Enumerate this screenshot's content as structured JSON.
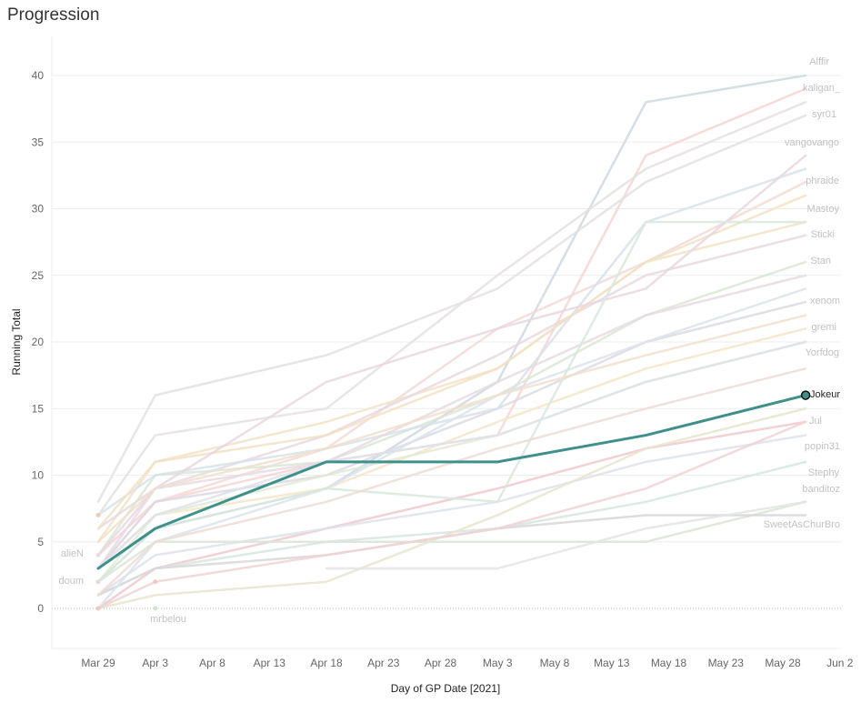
{
  "page": {
    "title": "Progression"
  },
  "colors": {
    "highlight": "#3f8f8a",
    "grid": "#eeeeee",
    "muted_label": "#c4c4c4"
  },
  "chart_data": {
    "type": "line",
    "title": "Progression",
    "xlabel": "Day of GP Date [2021]",
    "ylabel": "Running Total",
    "x_ticks": [
      "Mar 29",
      "Apr 3",
      "Apr 8",
      "Apr 13",
      "Apr 18",
      "Apr 23",
      "Apr 28",
      "May 3",
      "May 8",
      "May 13",
      "May 18",
      "May 23",
      "May 28",
      "Jun 2"
    ],
    "y_ticks": [
      "0",
      "5",
      "10",
      "15",
      "20",
      "25",
      "30",
      "35",
      "40"
    ],
    "ylim": [
      0,
      40
    ],
    "grid": true,
    "highlighted_series": "Jokeur",
    "series": [
      {
        "name": "Alffir",
        "color": "#cfd8e0",
        "label_color": "#c2c2c2",
        "points": [
          [
            "Mar 29",
            2
          ],
          [
            "Apr 3",
            6
          ],
          [
            "Apr 18",
            9
          ],
          [
            "May 3",
            17
          ],
          [
            "May 16",
            38
          ],
          [
            "May 30",
            40
          ]
        ]
      },
      {
        "name": "kaligan_",
        "color": "#f4d5d3",
        "label_color": "#c2c2c2",
        "points": [
          [
            "Mar 29",
            4
          ],
          [
            "Apr 3",
            8
          ],
          [
            "Apr 18",
            11
          ],
          [
            "May 3",
            13
          ],
          [
            "May 16",
            34
          ],
          [
            "May 30",
            39
          ]
        ]
      },
      {
        "name": "syr01",
        "color": "#e3e1e1",
        "label_color": "#c2c2c2",
        "points": [
          [
            "Mar 29",
            8
          ],
          [
            "Apr 3",
            16
          ],
          [
            "Apr 18",
            19
          ],
          [
            "May 3",
            24
          ],
          [
            "May 16",
            32
          ],
          [
            "May 30",
            37
          ]
        ]
      },
      {
        "name": "vangovango",
        "color": "#e6e0e0",
        "label_color": "#c2c2c2",
        "points": [
          [
            "Mar 29",
            7
          ],
          [
            "Apr 3",
            13
          ],
          [
            "Apr 18",
            15
          ],
          [
            "May 3",
            25
          ],
          [
            "May 16",
            33
          ],
          [
            "May 30",
            38
          ]
        ]
      },
      {
        "name": "phraide",
        "color": "#f1dad7",
        "label_color": "#c2c2c2",
        "points": [
          [
            "Mar 29",
            3
          ],
          [
            "Apr 3",
            8
          ],
          [
            "Apr 18",
            12
          ],
          [
            "May 3",
            21
          ],
          [
            "May 16",
            26
          ],
          [
            "May 30",
            32
          ]
        ]
      },
      {
        "name": "Mastoy",
        "color": "#f1e3c8",
        "label_color": "#c2c2c2",
        "points": [
          [
            "Mar 29",
            5
          ],
          [
            "Apr 3",
            11
          ],
          [
            "Apr 18",
            14
          ],
          [
            "May 3",
            18
          ],
          [
            "May 16",
            26
          ],
          [
            "May 30",
            29
          ]
        ]
      },
      {
        "name": "Sticki",
        "color": "#e8d8df",
        "label_color": "#c2c2c2",
        "points": [
          [
            "Mar 29",
            6
          ],
          [
            "Apr 3",
            9
          ],
          [
            "Apr 18",
            13
          ],
          [
            "May 3",
            19
          ],
          [
            "May 16",
            25
          ],
          [
            "May 30",
            28
          ]
        ]
      },
      {
        "name": "Stan",
        "color": "#d9e6d6",
        "label_color": "#c2c2c2",
        "points": [
          [
            "Mar 29",
            4
          ],
          [
            "Apr 3",
            10
          ],
          [
            "Apr 18",
            11
          ],
          [
            "May 3",
            16
          ],
          [
            "May 16",
            22
          ],
          [
            "May 30",
            26
          ]
        ]
      },
      {
        "name": "xenom",
        "color": "#dcd9e4",
        "label_color": "#c2c2c2",
        "points": [
          [
            "Mar 29",
            3
          ],
          [
            "Apr 3",
            8
          ],
          [
            "Apr 18",
            10
          ],
          [
            "May 3",
            15
          ],
          [
            "May 16",
            20
          ],
          [
            "May 30",
            23
          ]
        ]
      },
      {
        "name": "gremi",
        "color": "#f3e6c9",
        "label_color": "#c2c2c2",
        "points": [
          [
            "Mar 29",
            3
          ],
          [
            "Apr 3",
            7
          ],
          [
            "Apr 18",
            9
          ],
          [
            "May 3",
            14
          ],
          [
            "May 16",
            18
          ],
          [
            "May 30",
            21
          ]
        ]
      },
      {
        "name": "Yorfdog",
        "color": "#e3ead5",
        "label_color": "#c2c2c2",
        "points": [
          [
            "Mar 29",
            2
          ],
          [
            "Apr 3",
            7
          ],
          [
            "Apr 18",
            10
          ],
          [
            "May 3",
            13
          ],
          [
            "May 16",
            17
          ],
          [
            "May 30",
            20
          ]
        ]
      },
      {
        "name": "Jokeur",
        "color": "#3f8f8a",
        "label_color": "#222222",
        "points": [
          [
            "Mar 29",
            3
          ],
          [
            "Apr 3",
            6
          ],
          [
            "Apr 18",
            11
          ],
          [
            "May 3",
            11
          ],
          [
            "May 16",
            13
          ],
          [
            "May 30",
            16
          ]
        ]
      },
      {
        "name": "Jul",
        "color": "#efc9cc",
        "label_color": "#c2c2c2",
        "points": [
          [
            "Mar 29",
            0
          ],
          [
            "Apr 3",
            3
          ],
          [
            "Apr 18",
            6
          ],
          [
            "May 3",
            9
          ],
          [
            "May 16",
            12
          ],
          [
            "May 30",
            14
          ]
        ]
      },
      {
        "name": "popin31",
        "color": "#dfe2ea",
        "label_color": "#c2c2c2",
        "points": [
          [
            "Mar 29",
            1
          ],
          [
            "Apr 3",
            4
          ],
          [
            "Apr 18",
            6
          ],
          [
            "May 3",
            8
          ],
          [
            "May 16",
            11
          ],
          [
            "May 30",
            13
          ]
        ]
      },
      {
        "name": "Stephy",
        "color": "#d6e5e0",
        "label_color": "#c2c2c2",
        "points": [
          [
            "Mar 29",
            1
          ],
          [
            "Apr 3",
            3
          ],
          [
            "Apr 18",
            5
          ],
          [
            "May 3",
            6
          ],
          [
            "May 16",
            8
          ],
          [
            "May 30",
            11
          ]
        ]
      },
      {
        "name": "banditoz",
        "color": "#dbe5d6",
        "label_color": "#c2c2c2",
        "points": [
          [
            "Mar 29",
            2
          ],
          [
            "Apr 3",
            5
          ],
          [
            "Apr 18",
            5
          ],
          [
            "May 3",
            5
          ],
          [
            "May 16",
            5
          ],
          [
            "May 30",
            8
          ]
        ]
      },
      {
        "name": "SweetAsChurBro",
        "color": "#d9d6d9",
        "label_color": "#c2c2c2",
        "points": [
          [
            "Mar 29",
            1
          ],
          [
            "Apr 3",
            3
          ],
          [
            "Apr 18",
            4
          ],
          [
            "May 3",
            6
          ],
          [
            "May 16",
            7
          ],
          [
            "May 30",
            7
          ]
        ]
      },
      {
        "name": "alieN",
        "color": "#e6e6e6",
        "label_color": "#c2c2c2",
        "points": [
          [
            "Mar 29",
            4
          ]
        ]
      },
      {
        "name": "doum",
        "color": "#f1d2cf",
        "label_color": "#c2c2c2",
        "points": [
          [
            "Mar 29",
            2
          ]
        ]
      },
      {
        "name": "mrbelou",
        "color": "#dde8dd",
        "label_color": "#c2c2c2",
        "points": [
          [
            "Apr 3",
            0
          ]
        ]
      },
      {
        "name": "",
        "color": "#d7e2e9",
        "label_color": "#c2c2c2",
        "points": [
          [
            "Mar 29",
            7
          ],
          [
            "Apr 3",
            10
          ],
          [
            "Apr 18",
            12
          ],
          [
            "May 3",
            15
          ],
          [
            "May 16",
            29
          ],
          [
            "May 30",
            33
          ]
        ]
      },
      {
        "name": "",
        "color": "#f2e0c4",
        "label_color": "#c2c2c2",
        "points": [
          [
            "Mar 29",
            6
          ],
          [
            "Apr 3",
            11
          ],
          [
            "Apr 18",
            13
          ],
          [
            "May 3",
            18
          ],
          [
            "May 16",
            26
          ],
          [
            "May 30",
            31
          ]
        ]
      },
      {
        "name": "",
        "color": "#e9d7df",
        "label_color": "#c2c2c2",
        "points": [
          [
            "Mar 29",
            4
          ],
          [
            "Apr 3",
            9
          ],
          [
            "Apr 18",
            17
          ],
          [
            "May 3",
            21
          ],
          [
            "May 16",
            24
          ],
          [
            "May 30",
            34
          ]
        ]
      },
      {
        "name": "",
        "color": "#dbe4eb",
        "label_color": "#c2c2c2",
        "points": [
          [
            "Mar 29",
            0
          ],
          [
            "Apr 3",
            5
          ],
          [
            "Apr 18",
            9
          ],
          [
            "May 3",
            16
          ],
          [
            "May 16",
            20
          ],
          [
            "May 30",
            24
          ]
        ]
      },
      {
        "name": "",
        "color": "#e6dbe2",
        "label_color": "#c2c2c2",
        "points": [
          [
            "Mar 29",
            3
          ],
          [
            "Apr 3",
            9
          ],
          [
            "Apr 18",
            11
          ],
          [
            "May 3",
            17
          ],
          [
            "May 16",
            22
          ],
          [
            "May 30",
            25
          ]
        ]
      },
      {
        "name": "",
        "color": "#d8e8de",
        "label_color": "#c2c2c2",
        "points": [
          [
            "Mar 29",
            2
          ],
          [
            "Apr 3",
            6
          ],
          [
            "Apr 18",
            9
          ],
          [
            "May 3",
            8
          ],
          [
            "May 16",
            29
          ],
          [
            "May 30",
            29
          ]
        ]
      },
      {
        "name": "",
        "color": "#f1dfcd",
        "label_color": "#c2c2c2",
        "points": [
          [
            "Mar 29",
            5
          ],
          [
            "Apr 3",
            9
          ],
          [
            "Apr 18",
            12
          ],
          [
            "May 3",
            16
          ],
          [
            "May 16",
            19
          ],
          [
            "May 30",
            22
          ]
        ]
      },
      {
        "name": "",
        "color": "#dde2ea",
        "label_color": "#c2c2c2",
        "points": [
          [
            "Mar 29",
            3
          ],
          [
            "Apr 3",
            7
          ],
          [
            "Apr 18",
            11
          ],
          [
            "May 3",
            13
          ],
          [
            "May 16",
            17
          ],
          [
            "May 30",
            20
          ]
        ]
      },
      {
        "name": "",
        "color": "#ecdcd5",
        "label_color": "#c2c2c2",
        "points": [
          [
            "Mar 29",
            1
          ],
          [
            "Apr 3",
            5
          ],
          [
            "Apr 18",
            8
          ],
          [
            "May 3",
            12
          ],
          [
            "May 16",
            15
          ],
          [
            "May 30",
            18
          ]
        ]
      },
      {
        "name": "",
        "color": "#e8e5cf",
        "label_color": "#c2c2c2",
        "points": [
          [
            "Mar 29",
            0
          ],
          [
            "Apr 3",
            1
          ],
          [
            "Apr 18",
            2
          ],
          [
            "May 3",
            7
          ],
          [
            "May 16",
            12
          ],
          [
            "May 30",
            15
          ]
        ]
      },
      {
        "name": "",
        "color": "#e4e4e4",
        "label_color": "#c2c2c2",
        "points": [
          [
            "Apr 18",
            3
          ],
          [
            "May 3",
            3
          ],
          [
            "May 16",
            6
          ],
          [
            "May 30",
            8
          ]
        ]
      },
      {
        "name": "",
        "color": "#f0d2d4",
        "label_color": "#c2c2c2",
        "points": [
          [
            "Mar 29",
            0
          ],
          [
            "Apr 3",
            2
          ],
          [
            "Apr 18",
            4
          ],
          [
            "May 3",
            6
          ],
          [
            "May 16",
            9
          ],
          [
            "May 30",
            14
          ]
        ]
      }
    ],
    "stray_points": [
      {
        "x": "Mar 29",
        "y": 7,
        "color": "#f2c9b7"
      },
      {
        "x": "Apr 3",
        "y": 2,
        "color": "#f1c7c7"
      },
      {
        "x": "Mar 29",
        "y": 0,
        "color": "#f1c7c7"
      },
      {
        "x": "Apr 3",
        "y": 0,
        "color": "#d4e3d6"
      }
    ]
  }
}
